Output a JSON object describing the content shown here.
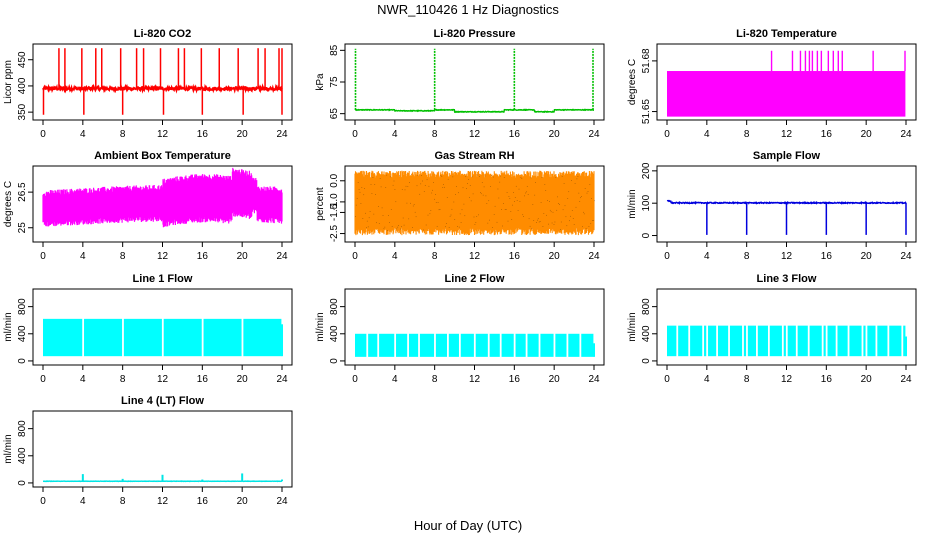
{
  "figure": {
    "title": "NWR_110426  1 Hz Diagnostics",
    "xlabel": "Hour of Day (UTC)"
  },
  "chart_data": [
    {
      "type": "line",
      "title": "Li-820 CO2",
      "ylabel": "Licor ppm",
      "color": "#ff0000",
      "xlim": [
        0,
        24
      ],
      "ylim": [
        335,
        480
      ],
      "x_ticks": [
        0,
        4,
        8,
        12,
        16,
        20,
        24
      ],
      "y_ticks": [
        350,
        400,
        450
      ],
      "series": [
        {
          "profile": "co2",
          "base": 395,
          "noise": 3,
          "spikes_up": [
            1.6,
            2.2,
            3.9,
            5.3,
            5.9,
            7.8,
            9.4,
            10.1,
            11.8,
            13.6,
            14.2,
            15.9,
            17.7,
            19.6,
            21.6,
            22.3,
            23.7,
            24.0
          ],
          "spike_up_value": 472,
          "spikes_down": [
            0.05,
            8.0,
            16.0,
            4.1,
            12.1,
            20.1,
            24.0
          ],
          "spike_down_value": 345
        }
      ]
    },
    {
      "type": "line",
      "title": "Li-820 Pressure",
      "ylabel": "kPa",
      "color": "#00c000",
      "xlim": [
        0,
        24
      ],
      "ylim": [
        63,
        87
      ],
      "x_ticks": [
        0,
        4,
        8,
        12,
        16,
        20,
        24
      ],
      "y_ticks": [
        65,
        75,
        85
      ],
      "series": [
        {
          "profile": "pressure",
          "base": 66.2,
          "dip": 65.6,
          "spikes": [
            0.05,
            8.0,
            16.0,
            23.9
          ],
          "spike_value": 85.5
        }
      ]
    },
    {
      "type": "area",
      "title": "Li-820 Temperature",
      "ylabel": "degrees C",
      "color": "#ff00ff",
      "xlim": [
        0,
        24
      ],
      "ylim": [
        51.645,
        51.69
      ],
      "x_ticks": [
        0,
        4,
        8,
        12,
        16,
        20,
        24
      ],
      "y_ticks": [
        51.65,
        51.68
      ],
      "series": [
        {
          "profile": "band",
          "low": 51.647,
          "high": 51.674,
          "spikes": [
            10.5,
            12.6,
            13.4,
            13.9,
            14.3,
            14.6,
            15.1,
            15.5,
            16.2,
            16.7,
            17.2,
            17.6,
            20.7,
            23.9
          ],
          "spike_value": 51.686
        }
      ]
    },
    {
      "type": "area",
      "title": "Ambient Box Temperature",
      "ylabel": "degrees C",
      "color": "#ff00ff",
      "xlim": [
        0,
        24
      ],
      "ylim": [
        24.4,
        27.6
      ],
      "x_ticks": [
        0,
        4,
        8,
        12,
        16,
        20,
        24
      ],
      "y_ticks": [
        25.0,
        26.5
      ],
      "series": [
        {
          "profile": "ambient"
        }
      ]
    },
    {
      "type": "line",
      "title": "Gas Stream RH",
      "ylabel": "percent",
      "color": "#ff8c00",
      "color2": "#000000",
      "xlim": [
        0,
        24
      ],
      "ylim": [
        -2.9,
        0.7
      ],
      "x_ticks": [
        0,
        4,
        8,
        12,
        16,
        20,
        24
      ],
      "y_ticks": [
        -2.5,
        -1.5,
        -1.0,
        0.0
      ],
      "y_tick_labels": [
        "-2.5",
        "-1.5",
        "-1.0",
        "0.0"
      ],
      "series": [
        {
          "profile": "rh",
          "low": -2.4,
          "high": 0.3
        }
      ]
    },
    {
      "type": "line",
      "title": "Sample Flow",
      "ylabel": "ml/min",
      "color": "#0000dd",
      "xlim": [
        0,
        24
      ],
      "ylim": [
        -20,
        215
      ],
      "x_ticks": [
        0,
        4,
        8,
        12,
        16,
        20,
        24
      ],
      "y_ticks": [
        0,
        100,
        200
      ],
      "series": [
        {
          "profile": "sample",
          "base": 101,
          "start": 107,
          "dips": [
            4.0,
            8.0,
            12.0,
            16.0,
            20.0,
            24.0
          ],
          "dip_value": 2
        }
      ]
    },
    {
      "type": "area",
      "title": "Line 1 Flow",
      "ylabel": "ml/min",
      "color": "#00ffff",
      "xlim": [
        0,
        24
      ],
      "ylim": [
        -60,
        1060
      ],
      "x_ticks": [
        0,
        4,
        8,
        12,
        16,
        20,
        24
      ],
      "y_ticks": [
        0,
        400,
        800
      ],
      "series": [
        {
          "profile": "block",
          "low": 70,
          "high": 620,
          "gaps": [
            4.0,
            8.0,
            12.0,
            16.0,
            20.0,
            24.0
          ],
          "end_high": 540
        }
      ]
    },
    {
      "type": "area",
      "title": "Line 2 Flow",
      "ylabel": "ml/min",
      "color": "#00ffff",
      "xlim": [
        0,
        24
      ],
      "ylim": [
        -60,
        1060
      ],
      "x_ticks": [
        0,
        4,
        8,
        12,
        16,
        20,
        24
      ],
      "y_ticks": [
        0,
        400,
        800
      ],
      "series": [
        {
          "profile": "block",
          "low": 60,
          "high": 400,
          "gaps": [
            1.2,
            2.3,
            4.0,
            5.3,
            6.4,
            8.0,
            9.3,
            10.5,
            12.0,
            13.4,
            14.6,
            16.0,
            17.2,
            18.5,
            20.0,
            21.3,
            22.6,
            24.0
          ],
          "end_high": 260
        }
      ]
    },
    {
      "type": "area",
      "title": "Line 3 Flow",
      "ylabel": "ml/min",
      "color": "#00ffff",
      "xlim": [
        0,
        24
      ],
      "ylim": [
        -60,
        1060
      ],
      "x_ticks": [
        0,
        4,
        8,
        12,
        16,
        20,
        24
      ],
      "y_ticks": [
        0,
        400,
        800
      ],
      "series": [
        {
          "profile": "block",
          "low": 70,
          "high": 520,
          "gaps": [
            1.0,
            2.2,
            3.6,
            4.0,
            5.0,
            6.2,
            7.6,
            8.0,
            9.0,
            10.2,
            11.6,
            12.0,
            13.0,
            14.2,
            15.6,
            16.0,
            17.0,
            18.2,
            19.6,
            20.0,
            21.0,
            22.2,
            23.6
          ],
          "end_high": 360
        }
      ]
    },
    {
      "type": "line",
      "title": "Line 4 (LT) Flow",
      "ylabel": "ml/min",
      "color": "#00e5e5",
      "xlim": [
        0,
        24
      ],
      "ylim": [
        -60,
        1060
      ],
      "x_ticks": [
        0,
        4,
        8,
        12,
        16,
        20,
        24
      ],
      "y_ticks": [
        0,
        400,
        800
      ],
      "series": [
        {
          "profile": "flat",
          "base": 25,
          "bumps": [
            4.0,
            8.0,
            12.0,
            16.0,
            20.0,
            24.0
          ],
          "bump_values": [
            130,
            60,
            120,
            50,
            140,
            50
          ]
        }
      ]
    }
  ]
}
